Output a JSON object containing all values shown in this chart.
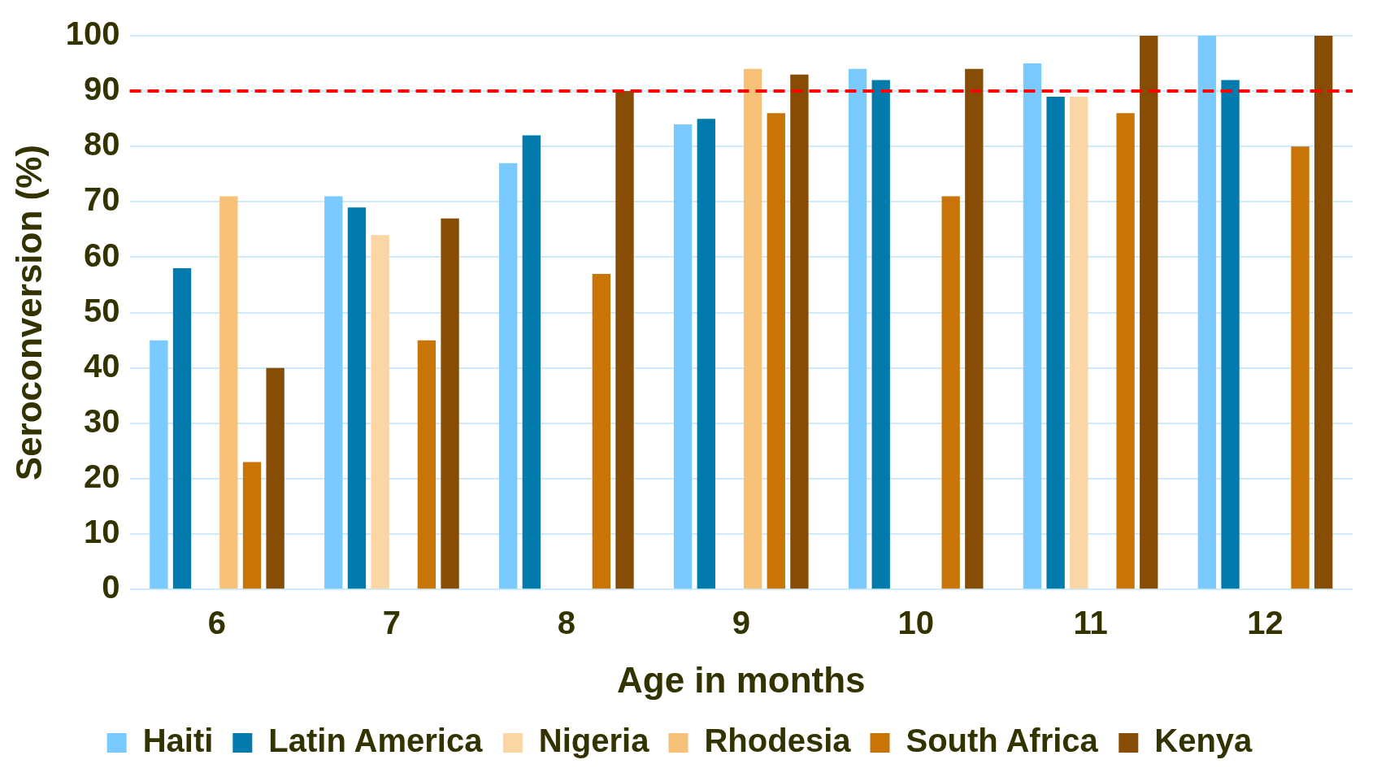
{
  "chart_data": {
    "type": "bar",
    "xlabel": "Age in months",
    "ylabel": "Seroconversion (%)",
    "categories": [
      "6",
      "7",
      "8",
      "9",
      "10",
      "11",
      "12"
    ],
    "series": [
      {
        "name": "Haiti",
        "color": "#7ac9ff",
        "values": [
          45,
          71,
          77,
          84,
          94,
          95,
          100
        ]
      },
      {
        "name": "Latin America",
        "color": "#027aab",
        "values": [
          58,
          69,
          82,
          85,
          92,
          89,
          92
        ]
      },
      {
        "name": "Nigeria",
        "color": "#fbd6a5",
        "values": [
          null,
          64,
          null,
          null,
          null,
          89,
          null
        ]
      },
      {
        "name": "Rhodesia",
        "color": "#f8c178",
        "values": [
          71,
          null,
          null,
          94,
          null,
          null,
          null
        ]
      },
      {
        "name": "South Africa",
        "color": "#c87407",
        "values": [
          23,
          45,
          57,
          86,
          71,
          86,
          80
        ]
      },
      {
        "name": "Kenya",
        "color": "#874c05",
        "values": [
          40,
          67,
          90,
          93,
          94,
          100,
          100
        ]
      }
    ],
    "ylim": [
      0,
      100
    ],
    "yticks": [
      0,
      10,
      20,
      30,
      40,
      50,
      60,
      70,
      80,
      90,
      100
    ],
    "ref_lines": [
      {
        "axis": "y",
        "value": 90,
        "color": "#ff0000",
        "line_style": "dashed"
      }
    ],
    "grid": "y",
    "legend": "bottom"
  }
}
